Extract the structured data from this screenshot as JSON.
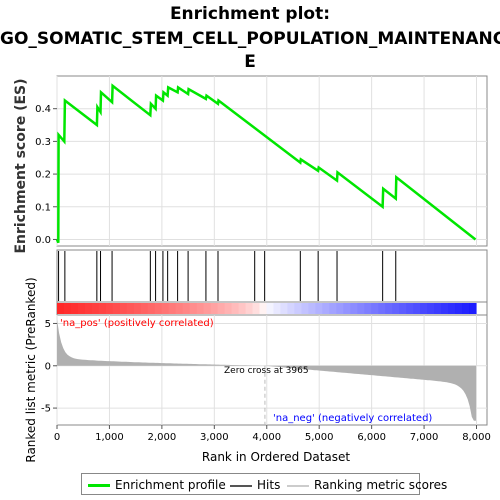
{
  "chart_data": {
    "type": "line",
    "title_lines": [
      "Enrichment plot:",
      "GO_SOMATIC_STEM_CELL_POPULATION_MAINTENANC",
      "E"
    ],
    "xlabel": "Rank in Ordered Dataset",
    "ylabel_top": "Enrichment score (ES)",
    "ylabel_bottom": "Ranked list metric (PreRanked)",
    "xlim": [
      0,
      8200
    ],
    "x_ticks": [
      "0",
      "1,000",
      "2,000",
      "3,000",
      "4,000",
      "5,000",
      "6,000",
      "7,000",
      "8,000"
    ],
    "x_tick_values": [
      0,
      1000,
      2000,
      3000,
      4000,
      5000,
      6000,
      7000,
      8000
    ],
    "es_ylim": [
      -0.02,
      0.5
    ],
    "es_ticks": [
      "0.0",
      "0.1",
      "0.2",
      "0.3",
      "0.4"
    ],
    "es_tick_values": [
      0.0,
      0.1,
      0.2,
      0.3,
      0.4
    ],
    "metric_ylim": [
      -7,
      6
    ],
    "metric_ticks": [
      "5",
      "0",
      "-5"
    ],
    "metric_tick_values": [
      5,
      0,
      -5
    ],
    "enrichment_profile": [
      [
        0,
        0.0
      ],
      [
        25,
        -0.01
      ],
      [
        30,
        0.32
      ],
      [
        140,
        0.3
      ],
      [
        150,
        0.425
      ],
      [
        760,
        0.35
      ],
      [
        770,
        0.405
      ],
      [
        830,
        0.39
      ],
      [
        840,
        0.45
      ],
      [
        1050,
        0.42
      ],
      [
        1060,
        0.47
      ],
      [
        1780,
        0.38
      ],
      [
        1790,
        0.415
      ],
      [
        1880,
        0.4
      ],
      [
        1890,
        0.44
      ],
      [
        2020,
        0.425
      ],
      [
        2030,
        0.45
      ],
      [
        2110,
        0.44
      ],
      [
        2120,
        0.465
      ],
      [
        2300,
        0.45
      ],
      [
        2310,
        0.465
      ],
      [
        2500,
        0.445
      ],
      [
        2510,
        0.46
      ],
      [
        2840,
        0.43
      ],
      [
        2850,
        0.44
      ],
      [
        3070,
        0.415
      ],
      [
        3080,
        0.425
      ],
      [
        4640,
        0.235
      ],
      [
        4650,
        0.245
      ],
      [
        4980,
        0.21
      ],
      [
        4990,
        0.22
      ],
      [
        5340,
        0.18
      ],
      [
        5350,
        0.205
      ],
      [
        6210,
        0.1
      ],
      [
        6220,
        0.155
      ],
      [
        6460,
        0.125
      ],
      [
        6470,
        0.19
      ],
      [
        7980,
        0.0
      ]
    ],
    "hits": [
      30,
      150,
      760,
      830,
      1050,
      1780,
      1880,
      2020,
      2110,
      2300,
      2500,
      2840,
      3070,
      3770,
      3960,
      4640,
      4980,
      5340,
      6210,
      6460
    ],
    "zero_cross": 3965,
    "zero_cross_label": "Zero cross at 3965",
    "na_pos_label": "'na_pos' (positively correlated)",
    "na_neg_label": "'na_neg' (negatively correlated)",
    "total_genes": 7990,
    "colors": {
      "profile": "#00e600",
      "hits": "#000000",
      "metric_fill": "#b0b0b0",
      "na_pos": "#ff0000",
      "na_neg": "#0000ff",
      "zero_line": "#bbbbbb"
    },
    "legend": [
      {
        "label": "Enrichment profile",
        "color": "#00e600",
        "style": "thick"
      },
      {
        "label": "Hits",
        "color": "#555555",
        "style": "thin"
      },
      {
        "label": "Ranking metric scores",
        "color": "#cccccc",
        "style": "thin"
      }
    ]
  }
}
